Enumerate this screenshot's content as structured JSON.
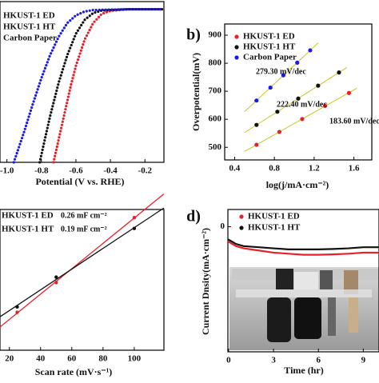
{
  "chart_data": [
    {
      "type": "line",
      "xlabel": "Potential (V vs. RHE)",
      "xlim": [
        -1.04,
        -0.09
      ],
      "ylim": [
        -100,
        5
      ],
      "xticks": [
        {
          "value": -1,
          "label": "-1.0"
        },
        -0.8,
        -0.6,
        -0.4,
        -0.2
      ],
      "series": [
        {
          "name": "HKUST-1 ED",
          "color": "#e8202a",
          "x": [
            -0.73,
            -0.7,
            -0.67,
            -0.63,
            -0.6,
            -0.55,
            -0.5,
            -0.45,
            -0.4,
            -0.3,
            -0.1
          ],
          "values": [
            -100,
            -85,
            -70,
            -50,
            -37,
            -20,
            -9,
            -3,
            -1,
            0,
            0
          ]
        },
        {
          "name": "HKUST-1 HT",
          "color": "#111111",
          "x": [
            -0.81,
            -0.78,
            -0.75,
            -0.7,
            -0.65,
            -0.6,
            -0.55,
            -0.5,
            -0.45,
            -0.3,
            -0.1
          ],
          "values": [
            -100,
            -85,
            -70,
            -48,
            -30,
            -16,
            -7,
            -2.5,
            -0.8,
            0,
            0
          ]
        },
        {
          "name": "Carbon Paper",
          "color": "#1a1aee",
          "x": [
            -0.96,
            -0.9,
            -0.85,
            -0.8,
            -0.75,
            -0.7,
            -0.65,
            -0.6,
            -0.55,
            -0.5,
            -0.3,
            -0.1
          ],
          "values": [
            -100,
            -80,
            -62,
            -45,
            -30,
            -18,
            -9,
            -4,
            -1.5,
            -0.5,
            0,
            0
          ]
        }
      ]
    },
    {
      "type": "scatter",
      "panel": "b)",
      "xlabel": "log(j/mA·cm⁻²)",
      "ylabel": "Overpotential(mV)",
      "xlim": [
        0.3,
        1.78
      ],
      "ylim": [
        455,
        940
      ],
      "xticks": [
        0.4,
        0.8,
        1.2,
        1.6
      ],
      "yticks": [
        500,
        600,
        700,
        800,
        900
      ],
      "annotations": [
        "279.30 mV/dec",
        "222.40 mV/dec",
        "183.60 mV/dec"
      ],
      "series": [
        {
          "name": "HKUST-1 ED",
          "color": "#e8202a",
          "x": [
            0.62,
            0.85,
            1.08,
            1.31,
            1.55
          ],
          "values": [
            509,
            555,
            601,
            648,
            694
          ]
        },
        {
          "name": "HKUST-1  HT",
          "color": "#111111",
          "x": [
            0.62,
            0.83,
            1.04,
            1.24,
            1.45
          ],
          "values": [
            580,
            627,
            674,
            720,
            767
          ]
        },
        {
          "name": "Carbon Paper",
          "color": "#1a1aee",
          "x": [
            0.62,
            0.76,
            0.89,
            1.03,
            1.16
          ],
          "values": [
            667,
            713,
            757,
            802,
            846
          ]
        }
      ]
    },
    {
      "type": "scatter",
      "xlabel": "Scan rate (mV·s⁻¹)",
      "xlim": [
        14,
        119
      ],
      "ylim": [
        0,
        0.052
      ],
      "xticks": [
        20,
        40,
        60,
        80,
        100
      ],
      "annotations": [
        "0.26 mF cm⁻²",
        "0.19 mF cm⁻²"
      ],
      "series": [
        {
          "name": "HKUST-1 ED",
          "color": "#e8202a",
          "x": [
            25,
            50,
            100
          ],
          "values": [
            0.014,
            0.025,
            0.049
          ]
        },
        {
          "name": "HKUST-1 HT",
          "color": "#111111",
          "x": [
            25,
            50,
            100
          ],
          "values": [
            0.016,
            0.027,
            0.045
          ]
        }
      ]
    },
    {
      "type": "line",
      "panel": "d)",
      "xlabel": "Time (hr)",
      "ylabel": "Current Dnsity(mA·cm⁻²)",
      "xlim": [
        -0.05,
        10.05
      ],
      "ylim": [
        -58,
        8
      ],
      "xticks": [
        0,
        3,
        6,
        9
      ],
      "yticks": [
        0
      ],
      "series": [
        {
          "name": "HKUST-1 ED",
          "color": "#e8202a",
          "x": [
            0,
            0.5,
            1,
            2,
            3,
            4,
            5,
            6,
            7,
            8,
            9,
            10
          ],
          "values": [
            -7,
            -9,
            -10,
            -11,
            -12,
            -12.5,
            -13,
            -13,
            -12.8,
            -12.5,
            -12,
            -12
          ]
        },
        {
          "name": "HKUST-1 HT",
          "color": "#111111",
          "x": [
            0,
            0.5,
            1,
            2,
            3,
            4,
            5,
            6,
            7,
            8,
            9,
            10
          ],
          "values": [
            -6,
            -8,
            -9,
            -9.5,
            -10,
            -10.5,
            -10.5,
            -10.5,
            -10.3,
            -10,
            -9.5,
            -9.5
          ]
        }
      ]
    }
  ]
}
